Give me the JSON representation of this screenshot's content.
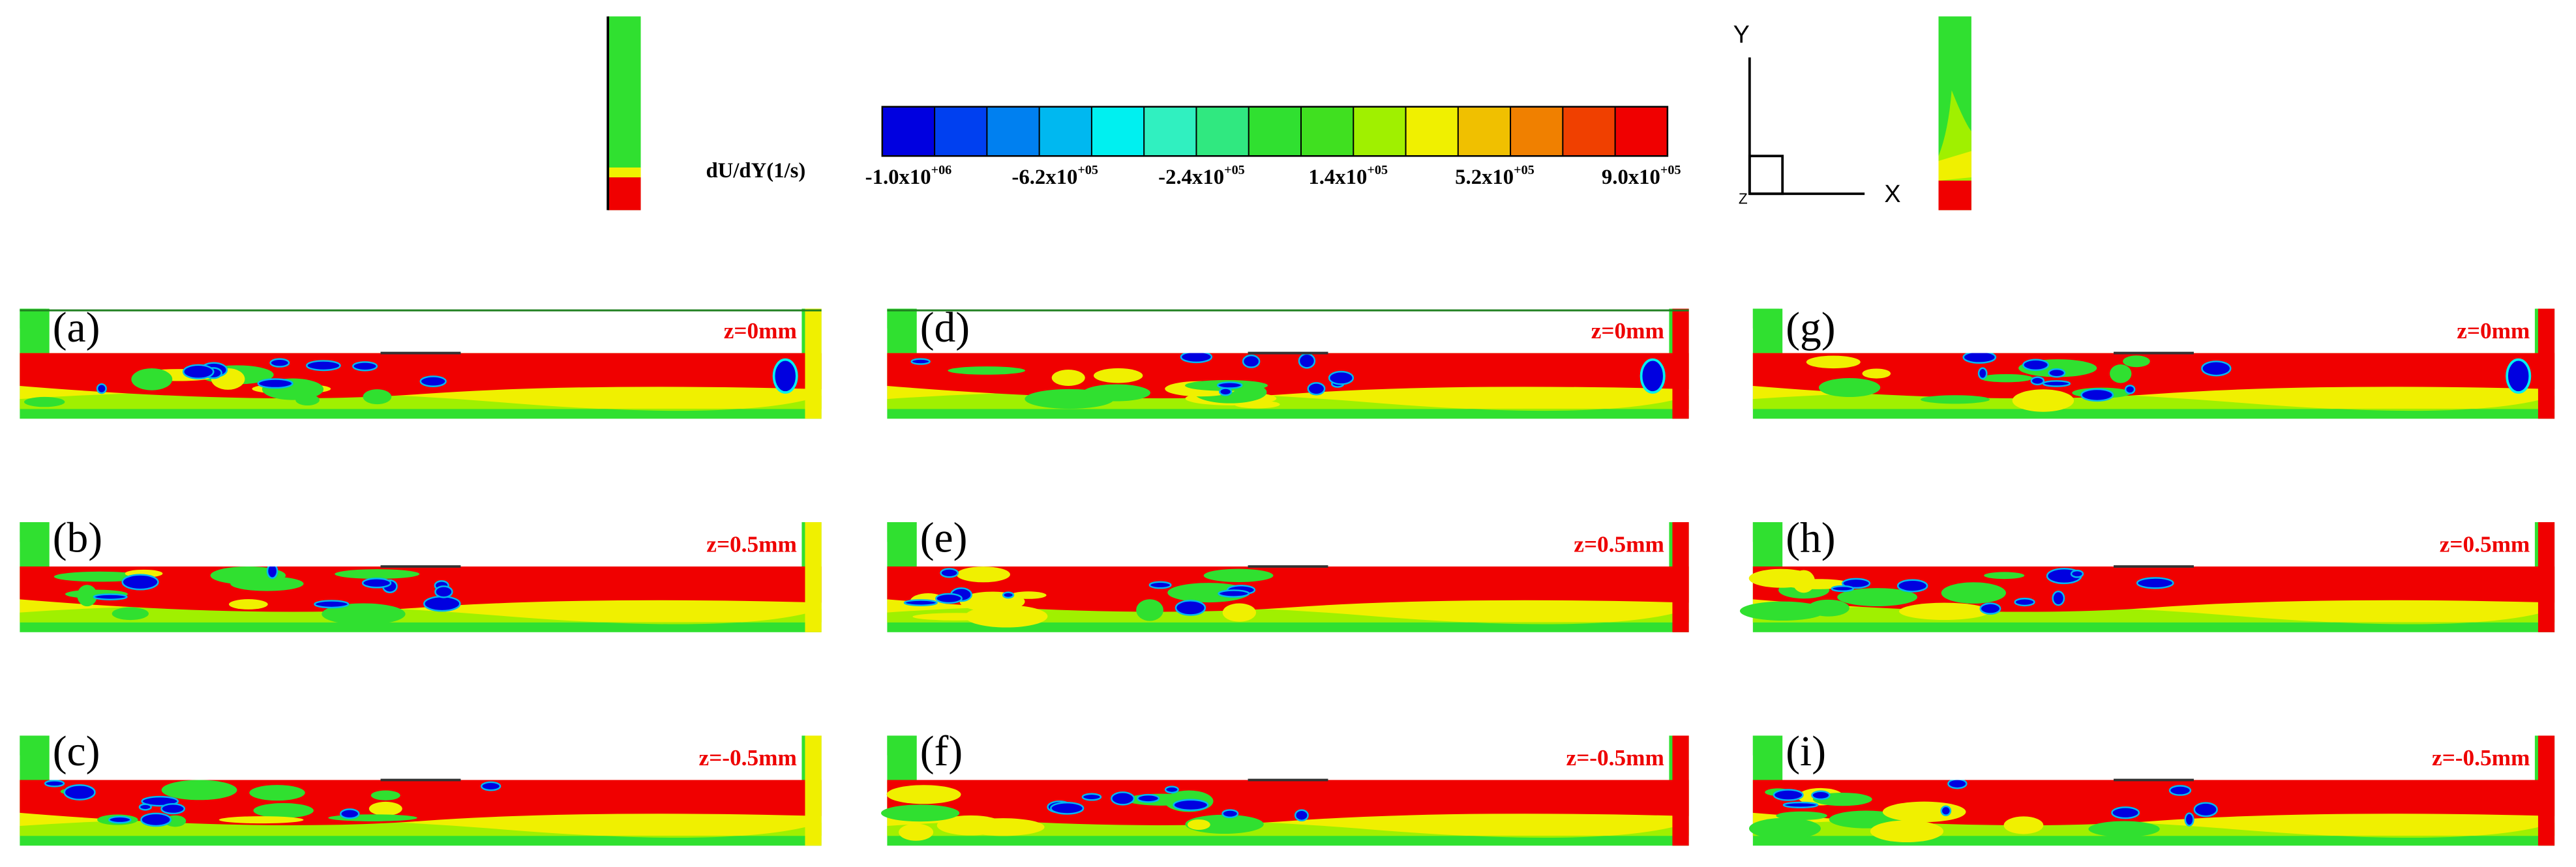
{
  "colorbar": {
    "label": "dU/dY(1/s)",
    "colors": [
      "#0000e0",
      "#0040f0",
      "#0080f0",
      "#00b8f0",
      "#00f0f0",
      "#30f0c0",
      "#30e880",
      "#30e030",
      "#40e020",
      "#a0f000",
      "#f0f000",
      "#f0c000",
      "#f08000",
      "#f04000",
      "#f00000"
    ],
    "ticks": [
      {
        "base": "-1.0x10",
        "exponent": "+06"
      },
      {
        "base": "-6.2x10",
        "exponent": "+05"
      },
      {
        "base": "-2.4x10",
        "exponent": "+05"
      },
      {
        "base": "1.4x10",
        "exponent": "+05"
      },
      {
        "base": "5.2x10",
        "exponent": "+05"
      },
      {
        "base": "9.0x10",
        "exponent": "+05"
      }
    ]
  },
  "axes_triad": {
    "y": "Y",
    "x": "X",
    "z": "Z"
  },
  "panels": [
    {
      "label": "(a)",
      "plane": "z=0mm"
    },
    {
      "label": "(b)",
      "plane": "z=0.5mm"
    },
    {
      "label": "(c)",
      "plane": "z=-0.5mm"
    },
    {
      "label": "(d)",
      "plane": "z=0mm"
    },
    {
      "label": "(e)",
      "plane": "z=0.5mm"
    },
    {
      "label": "(f)",
      "plane": "z=-0.5mm"
    },
    {
      "label": "(g)",
      "plane": "z=0mm"
    },
    {
      "label": "(h)",
      "plane": "z=0.5mm"
    },
    {
      "label": "(i)",
      "plane": "z=-0.5mm"
    }
  ]
}
